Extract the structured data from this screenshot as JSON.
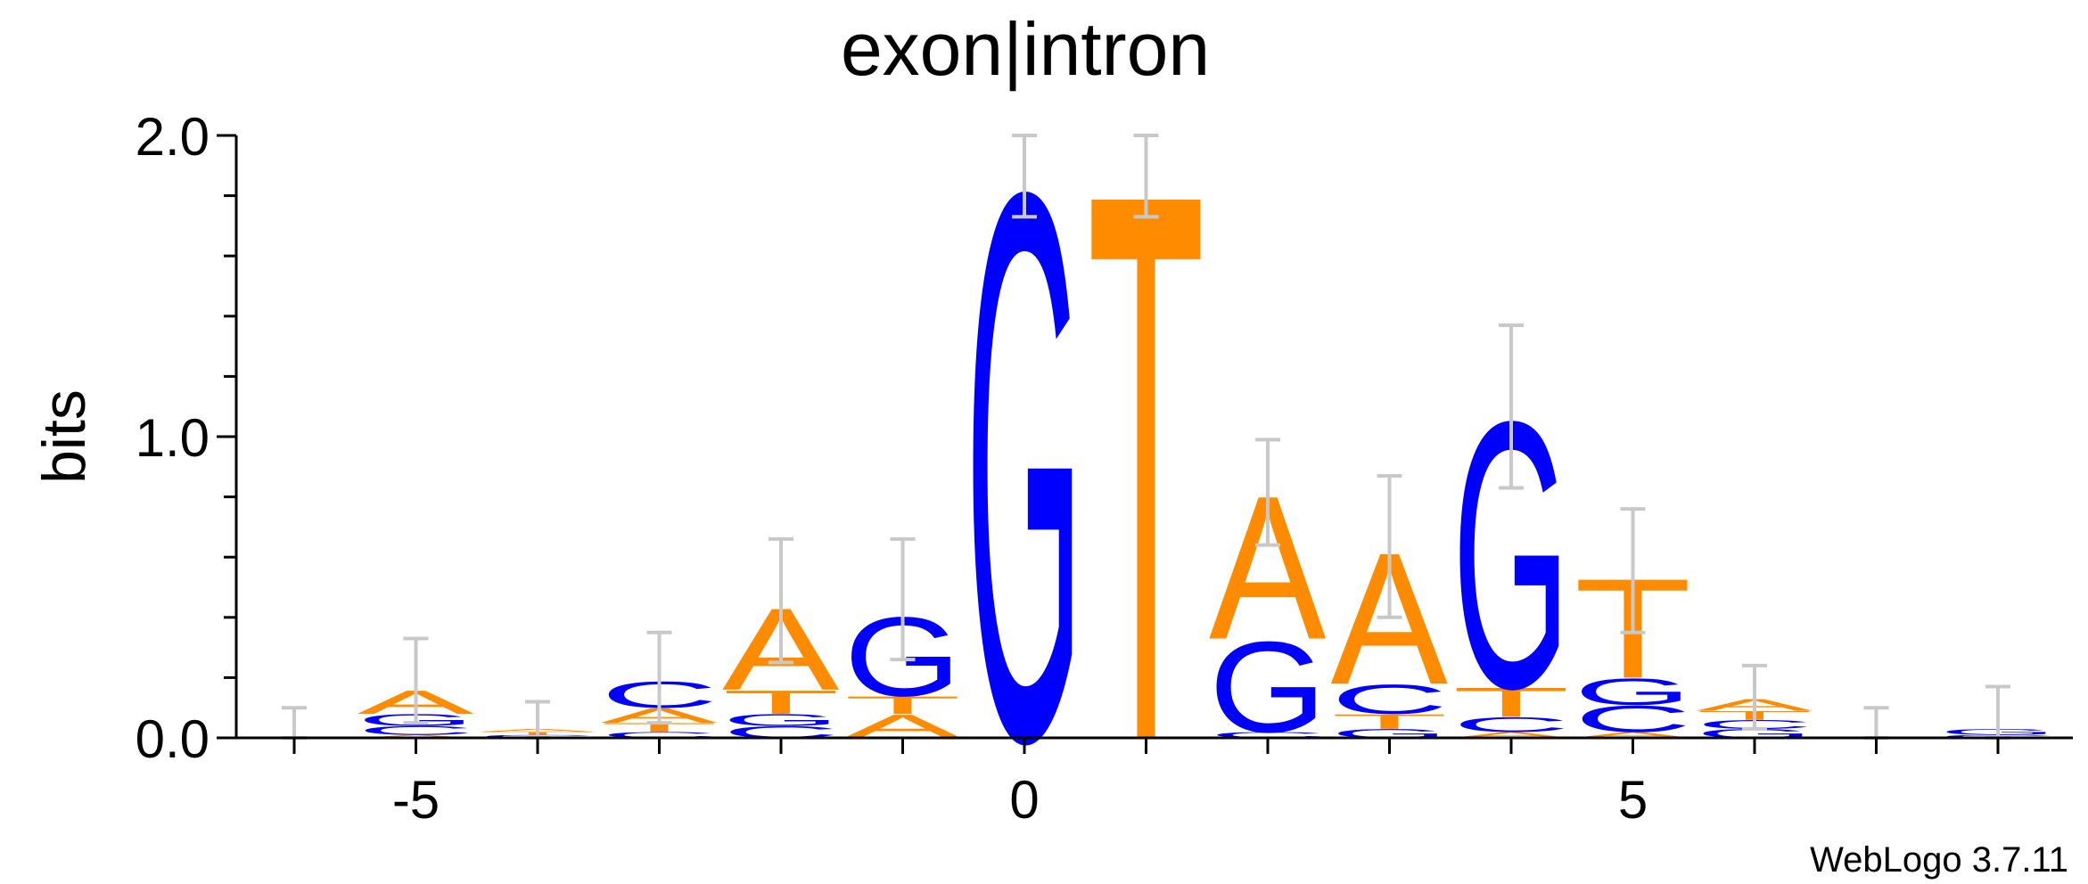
{
  "colors": {
    "A": "#ff8c00",
    "T": "#ff8c00",
    "G": "#0000ff",
    "C": "#0000ff",
    "error_bar": "#c8c8c8",
    "axis": "#000000"
  },
  "chart_data": {
    "type": "sequence-logo",
    "title": "exon|intron",
    "ylabel": "bits",
    "xlabel": "",
    "ylim": [
      0,
      2
    ],
    "yticks": [
      "0.0",
      "1.0",
      "2.0"
    ],
    "xticks": [
      "-5",
      "0",
      "5"
    ],
    "positions": [
      {
        "pos": -6,
        "letters": [],
        "error": [
          0.0,
          0.1
        ]
      },
      {
        "pos": -5,
        "letters": [
          {
            "letter": "A",
            "height": 0.01
          },
          {
            "letter": "C",
            "height": 0.03
          },
          {
            "letter": "G",
            "height": 0.04
          },
          {
            "letter": "A",
            "height": 0.08
          }
        ],
        "error": [
          0.05,
          0.33
        ]
      },
      {
        "pos": -4,
        "letters": [
          {
            "letter": "C",
            "height": 0.01
          },
          {
            "letter": "T",
            "height": 0.01
          },
          {
            "letter": "A",
            "height": 0.01
          }
        ],
        "error": [
          0.0,
          0.12
        ]
      },
      {
        "pos": -3,
        "letters": [
          {
            "letter": "C",
            "height": 0.02
          },
          {
            "letter": "T",
            "height": 0.03
          },
          {
            "letter": "A",
            "height": 0.05
          },
          {
            "letter": "C",
            "height": 0.09
          }
        ],
        "error": [
          0.05,
          0.35
        ]
      },
      {
        "pos": -2,
        "letters": [
          {
            "letter": "C",
            "height": 0.04
          },
          {
            "letter": "G",
            "height": 0.04
          },
          {
            "letter": "T",
            "height": 0.08
          },
          {
            "letter": "A",
            "height": 0.28
          }
        ],
        "error": [
          0.25,
          0.66
        ]
      },
      {
        "pos": -1,
        "letters": [
          {
            "letter": "A",
            "height": 0.08
          },
          {
            "letter": "T",
            "height": 0.06
          },
          {
            "letter": "G",
            "height": 0.27
          }
        ],
        "error": [
          0.26,
          0.66
        ]
      },
      {
        "pos": 0,
        "letters": [
          {
            "letter": "G",
            "height": 1.87
          }
        ],
        "error": [
          1.73,
          2.0
        ]
      },
      {
        "pos": 1,
        "letters": [
          {
            "letter": "T",
            "height": 1.87
          }
        ],
        "error": [
          1.73,
          2.0
        ]
      },
      {
        "pos": 2,
        "letters": [
          {
            "letter": "C",
            "height": 0.02
          },
          {
            "letter": "G",
            "height": 0.31
          },
          {
            "letter": "A",
            "height": 0.49
          }
        ],
        "error": [
          0.64,
          0.99
        ]
      },
      {
        "pos": 3,
        "letters": [
          {
            "letter": "G",
            "height": 0.03
          },
          {
            "letter": "T",
            "height": 0.05
          },
          {
            "letter": "C",
            "height": 0.1
          },
          {
            "letter": "A",
            "height": 0.45
          }
        ],
        "error": [
          0.4,
          0.87
        ]
      },
      {
        "pos": 4,
        "letters": [
          {
            "letter": "A",
            "height": 0.02
          },
          {
            "letter": "C",
            "height": 0.05
          },
          {
            "letter": "T",
            "height": 0.1
          },
          {
            "letter": "G",
            "height": 0.91
          }
        ],
        "error": [
          0.83,
          1.37
        ]
      },
      {
        "pos": 5,
        "letters": [
          {
            "letter": "A",
            "height": 0.02
          },
          {
            "letter": "C",
            "height": 0.09
          },
          {
            "letter": "G",
            "height": 0.09
          },
          {
            "letter": "T",
            "height": 0.34
          }
        ],
        "error": [
          0.35,
          0.76
        ]
      },
      {
        "pos": 6,
        "letters": [
          {
            "letter": "G",
            "height": 0.03
          },
          {
            "letter": "C",
            "height": 0.03
          },
          {
            "letter": "T",
            "height": 0.03
          },
          {
            "letter": "A",
            "height": 0.04
          }
        ],
        "error": [
          0.03,
          0.24
        ]
      },
      {
        "pos": 7,
        "letters": [],
        "error": [
          0.0,
          0.1
        ]
      },
      {
        "pos": 8,
        "letters": [
          {
            "letter": "C",
            "height": 0.01
          },
          {
            "letter": "G",
            "height": 0.02
          }
        ],
        "error": [
          0.0,
          0.17
        ]
      }
    ]
  },
  "credit": "WebLogo 3.7.11"
}
